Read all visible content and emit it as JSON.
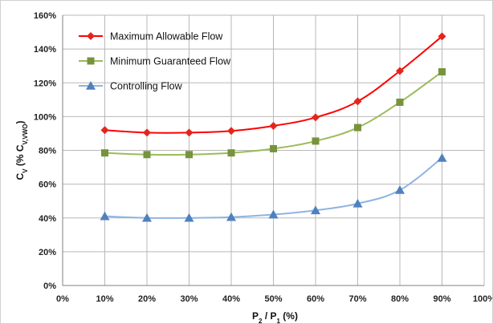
{
  "chart_data": {
    "type": "line",
    "x": [
      0.1,
      0.2,
      0.3,
      0.4,
      0.5,
      0.6,
      0.7,
      0.8,
      0.9
    ],
    "xlim": [
      0,
      1
    ],
    "ylim": [
      0,
      1.6
    ],
    "xticks": [
      0,
      0.1,
      0.2,
      0.3,
      0.4,
      0.5,
      0.6,
      0.7,
      0.8,
      0.9,
      1.0
    ],
    "yticks": [
      0,
      0.2,
      0.4,
      0.6,
      0.8,
      1.0,
      1.2,
      1.4,
      1.6
    ],
    "x_tick_labels": [
      "0%",
      "10%",
      "20%",
      "30%",
      "40%",
      "50%",
      "60%",
      "70%",
      "80%",
      "90%",
      "100%"
    ],
    "y_tick_labels": [
      "0%",
      "20%",
      "40%",
      "60%",
      "80%",
      "100%",
      "120%",
      "140%",
      "160%"
    ],
    "grid": true,
    "legend_position": "top-left",
    "xlabel": {
      "parts": [
        {
          "text": "P"
        },
        {
          "text": "2",
          "sub": true
        },
        {
          "text": " / P"
        },
        {
          "text": "1",
          "sub": true
        },
        {
          "text": " (%)"
        }
      ]
    },
    "ylabel": {
      "parts": [
        {
          "text": "C"
        },
        {
          "text": "V",
          "sub": true
        },
        {
          "text": " (% C"
        },
        {
          "text": "V,VWO",
          "sub": true
        },
        {
          "text": ")"
        }
      ]
    },
    "series": [
      {
        "name": "Maximum Allowable Flow",
        "color": "#ff0000",
        "marker": "diamond",
        "marker_color": "#e3261b",
        "values": [
          0.92,
          0.905,
          0.905,
          0.915,
          0.945,
          0.995,
          1.09,
          1.27,
          1.475
        ]
      },
      {
        "name": "Minimum Guaranteed Flow",
        "color": "#9bbb59",
        "marker": "square",
        "marker_color": "#77933c",
        "values": [
          0.785,
          0.775,
          0.775,
          0.785,
          0.81,
          0.855,
          0.935,
          1.085,
          1.265
        ]
      },
      {
        "name": "Controlling Flow",
        "color": "#8eb4e3",
        "marker": "triangle",
        "marker_color": "#4f81bd",
        "values": [
          0.41,
          0.4,
          0.4,
          0.405,
          0.42,
          0.445,
          0.485,
          0.565,
          0.755
        ]
      }
    ]
  }
}
